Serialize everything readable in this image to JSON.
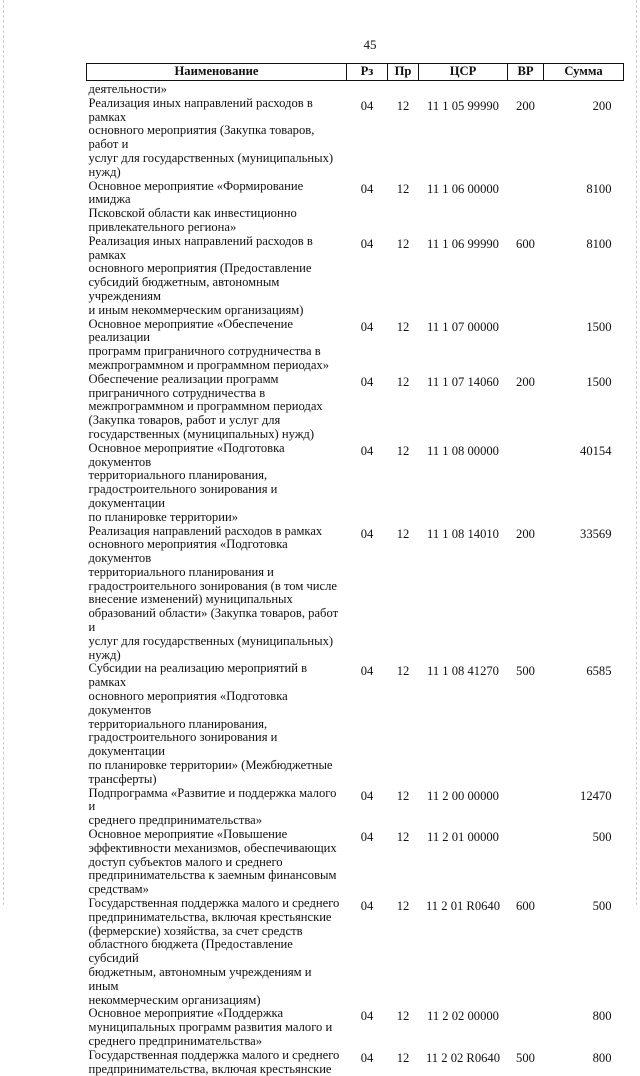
{
  "page_number": "45",
  "table": {
    "headers": [
      "Наименование",
      "Рз",
      "Пр",
      "ЦСР",
      "ВР",
      "Сумма"
    ],
    "continuation": "деятельности»",
    "rows": [
      {
        "name": "Реализация иных направлений расходов в рамках\nосновного мероприятия (Закупка товаров, работ и\nуслуг для государственных (муниципальных)\nнужд)",
        "rz": "04",
        "pr": "12",
        "csr": "11 1 05 99990",
        "vr": "200",
        "sum": "200"
      },
      {
        "name": "Основное мероприятие «Формирование имиджа\nПсковской области как инвестиционно\nпривлекательного региона»",
        "rz": "04",
        "pr": "12",
        "csr": "11 1 06 00000",
        "vr": "",
        "sum": "8100"
      },
      {
        "name": "Реализация иных направлений расходов в рамках\nосновного мероприятия (Предоставление\nсубсидий бюджетным, автономным учреждениям\nи иным некоммерческим организациям)",
        "rz": "04",
        "pr": "12",
        "csr": "11 1 06 99990",
        "vr": "600",
        "sum": "8100"
      },
      {
        "name": "Основное мероприятие «Обеспечение реализации\nпрограмм приграничного сотрудничества в\nмежпрограммном и программном периодах»",
        "rz": "04",
        "pr": "12",
        "csr": "11 1 07 00000",
        "vr": "",
        "sum": "1500"
      },
      {
        "name": "Обеспечение реализации программ\nприграничного сотрудничества в\nмежпрограммном и программном периодах\n(Закупка товаров, работ и услуг для\nгосударственных (муниципальных) нужд)",
        "rz": "04",
        "pr": "12",
        "csr": "11 1 07 14060",
        "vr": "200",
        "sum": "1500"
      },
      {
        "name": "Основное мероприятие «Подготовка документов\nтерриториального планирования,\nградостроительного зонирования и документации\nпо планировке территории»",
        "rz": "04",
        "pr": "12",
        "csr": "11 1 08 00000",
        "vr": "",
        "sum": "40154"
      },
      {
        "name": "Реализация направлений расходов в рамках\nосновного мероприятия «Подготовка документов\nтерриториального планирования и\nградостроительного зонирования (в том числе\nвнесение изменений) муниципальных\nобразований области» (Закупка товаров, работ и\nуслуг для государственных (муниципальных)\nнужд)",
        "rz": "04",
        "pr": "12",
        "csr": "11 1 08 14010",
        "vr": "200",
        "sum": "33569"
      },
      {
        "name": "Субсидии на реализацию мероприятий в рамках\nосновного мероприятия «Подготовка документов\nтерриториального планирования,\nградостроительного зонирования и документации\nпо планировке территории» (Межбюджетные\nтрансферты)",
        "rz": "04",
        "pr": "12",
        "csr": "11 1 08 41270",
        "vr": "500",
        "sum": "6585"
      },
      {
        "name": "Подпрограмма «Развитие и поддержка малого и\nсреднего предпринимательства»",
        "rz": "04",
        "pr": "12",
        "csr": "11 2 00 00000",
        "vr": "",
        "sum": "12470"
      },
      {
        "name": "Основное мероприятие «Повышение\nэффективности механизмов, обеспечивающих\nдоступ субъектов малого и среднего\nпредпринимательства к заемным финансовым\nсредствам»",
        "rz": "04",
        "pr": "12",
        "csr": "11 2 01 00000",
        "vr": "",
        "sum": "500"
      },
      {
        "name": "Государственная поддержка малого и среднего\nпредпринимательства, включая крестьянские\n(фермерские) хозяйства, за счет средств\nобластного бюджета (Предоставление субсидий\nбюджетным, автономным учреждениям и иным\nнекоммерческим организациям)",
        "rz": "04",
        "pr": "12",
        "csr": "11 2 01 R0640",
        "vr": "600",
        "sum": "500"
      },
      {
        "name": "Основное мероприятие «Поддержка\nмуниципальных программ развития малого и\nсреднего предпринимательства»",
        "rz": "04",
        "pr": "12",
        "csr": "11 2 02 00000",
        "vr": "",
        "sum": "800"
      },
      {
        "name": "Государственная поддержка малого и среднего\nпредпринимательства, включая крестьянские",
        "rz": "04",
        "pr": "12",
        "csr": "11 2 02 R0640",
        "vr": "500",
        "sum": "800"
      }
    ]
  }
}
